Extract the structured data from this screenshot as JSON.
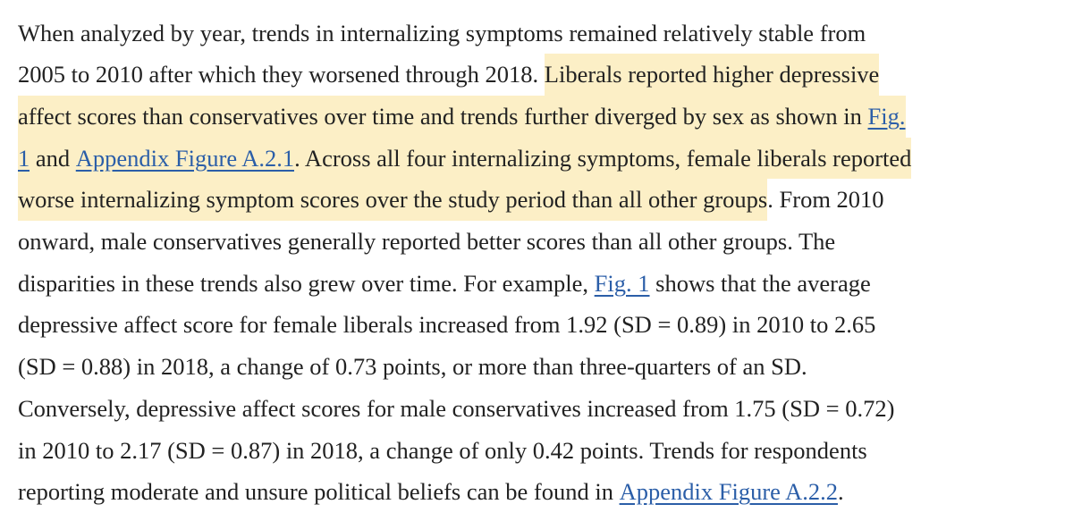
{
  "paragraph": {
    "lines": [
      [
        {
          "text": "When analyzed by year, trends in internalizing symptoms remained relatively stable from",
          "style": "plain"
        }
      ],
      [
        {
          "text": "2005 to 2010 after which they worsened through 2018. ",
          "style": "plain"
        },
        {
          "text": "Liberals reported higher depressive",
          "style": "mark"
        }
      ],
      [
        {
          "text": "affect scores than conservatives over time and trends further diverged by sex as shown in ",
          "style": "mark"
        },
        {
          "text": "Fig.",
          "style": "mark-link"
        }
      ],
      [
        {
          "text": "1",
          "style": "mark-link"
        },
        {
          "text": " and ",
          "style": "mark"
        },
        {
          "text": "Appendix Figure A.2.1",
          "style": "mark-link"
        },
        {
          "text": ". Across all four internalizing symptoms, female liberals reported",
          "style": "mark"
        }
      ],
      [
        {
          "text": "worse internalizing symptom scores over the study period than all other groups",
          "style": "mark"
        },
        {
          "text": ". From 2010",
          "style": "plain"
        }
      ],
      [
        {
          "text": "onward, male conservatives generally reported better scores than all other groups. The",
          "style": "plain"
        }
      ],
      [
        {
          "text": "disparities in these trends also grew over time. For example, ",
          "style": "plain"
        },
        {
          "text": "Fig. 1",
          "style": "link"
        },
        {
          "text": " shows that the average",
          "style": "plain"
        }
      ],
      [
        {
          "text": "depressive affect score for female liberals increased from 1.92 (SD = 0.89) in 2010 to 2.65",
          "style": "plain"
        }
      ],
      [
        {
          "text": "(SD = 0.88) in 2018, a change of 0.73 points, or more than three-quarters of an SD.",
          "style": "plain"
        }
      ],
      [
        {
          "text": "Conversely, depressive affect scores for male conservatives increased from 1.75 (SD = 0.72)",
          "style": "plain"
        }
      ],
      [
        {
          "text": "in 2010 to 2.17 (SD = 0.87) in 2018, a change of only 0.42 points. Trends for respondents",
          "style": "plain"
        }
      ],
      [
        {
          "text": "reporting moderate and unsure political beliefs can be found in ",
          "style": "plain"
        },
        {
          "text": "Appendix Figure A.2.2",
          "style": "link"
        },
        {
          "text": ".",
          "style": "plain"
        }
      ]
    ]
  }
}
